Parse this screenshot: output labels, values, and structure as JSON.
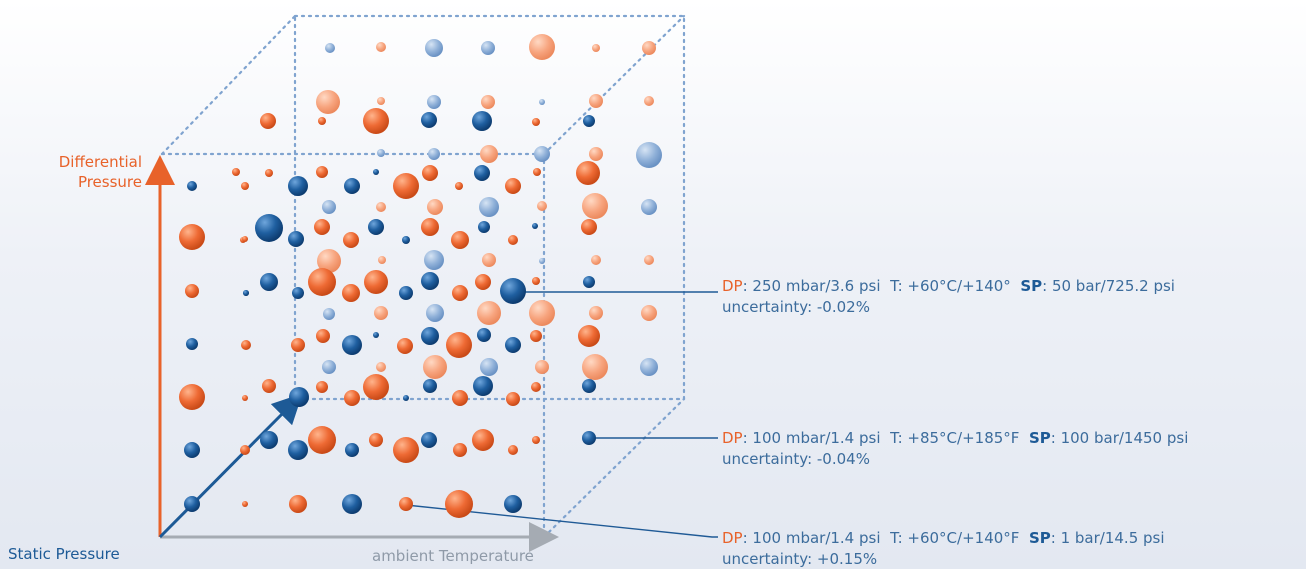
{
  "axes": {
    "differential_pressure": [
      "Differential",
      "Pressure"
    ],
    "static_pressure": "Static Pressure",
    "ambient_temperature": "ambient Temperature"
  },
  "callouts": [
    {
      "dp_key": "DP",
      "dp_value": ": 250 mbar/3.6 psi",
      "t_text": "T: +60°C/+140°",
      "sp_key": "SP",
      "sp_value": ": 50 bar/725.2 psi",
      "uncertainty": "uncertainty: -0.02%"
    },
    {
      "dp_key": "DP",
      "dp_value": ": 100 mbar/1.4 psi",
      "t_text": "T: +85°C/+185°F",
      "sp_key": "SP",
      "sp_value": ": 100 bar/1450 psi",
      "uncertainty": "uncertainty: -0.04%"
    },
    {
      "dp_key": "DP",
      "dp_value": ": 100 mbar/1.4 psi",
      "t_text": "T: +60°C/+140°F",
      "sp_key": "SP",
      "sp_value": ": 1 bar/14.5 psi",
      "uncertainty": "uncertainty: +0.15%"
    }
  ],
  "colors": {
    "orange": "#e8622a",
    "blue": "#1d5a96",
    "grey": "#a5abb3",
    "cube_edge": "#7fa3cf",
    "callout_line": "#1f5a96"
  },
  "legend_note": ""
}
